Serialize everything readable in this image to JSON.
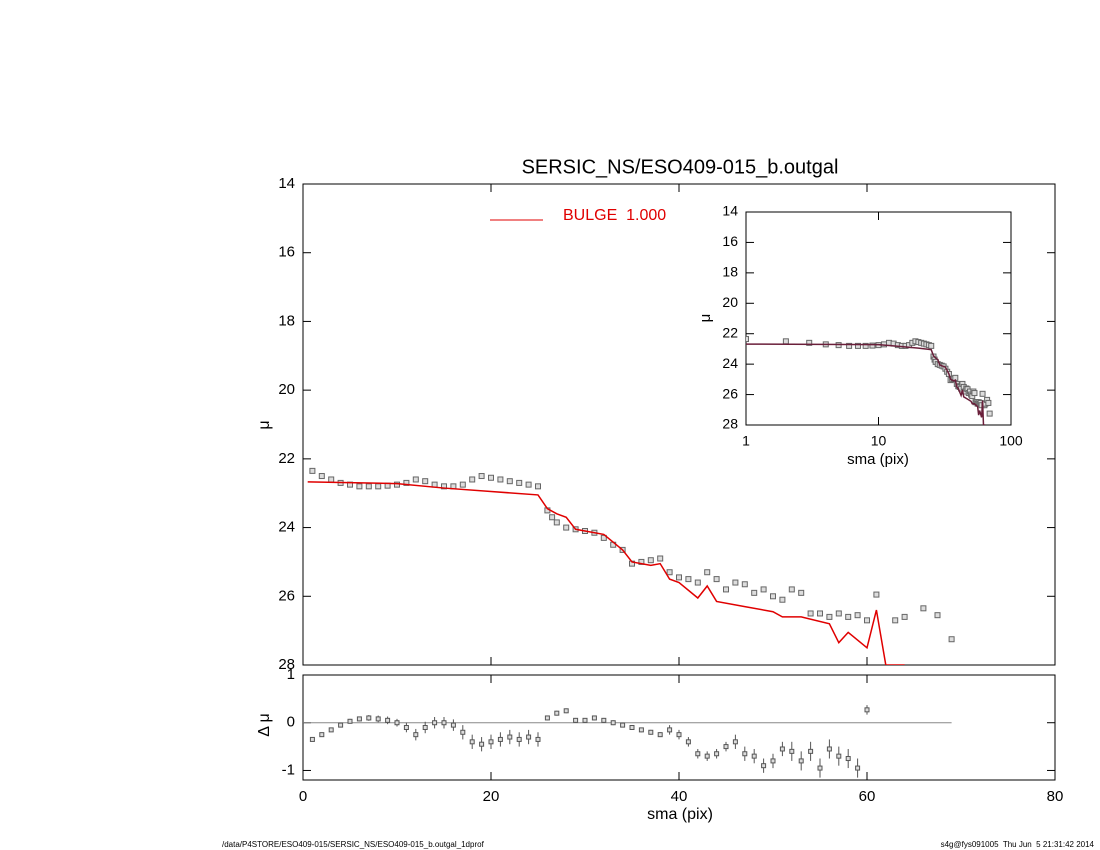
{
  "chart_data": [
    {
      "type": "line",
      "title": "SERSIC_NS/ESO409-015_b.outgal",
      "ylabel": "μ",
      "xlim": [
        0,
        80
      ],
      "xticks": [
        0,
        20,
        40,
        60,
        80
      ],
      "ylim": [
        28,
        14
      ],
      "yticks": [
        14,
        16,
        18,
        20,
        22,
        24,
        26,
        28
      ],
      "series": [
        {
          "color": "#666666",
          "marker": "square",
          "x": [
            1,
            2,
            3,
            4,
            5,
            6,
            7,
            8,
            9,
            10,
            11,
            12,
            13,
            14,
            15,
            16,
            17,
            18,
            19,
            20,
            21,
            22,
            23,
            24,
            25,
            26,
            26.5,
            27,
            28,
            29,
            30,
            31,
            32,
            33,
            34,
            35,
            36,
            37,
            38,
            39,
            40,
            41,
            42,
            43,
            44,
            45,
            46,
            47,
            48,
            49,
            50,
            51,
            52,
            53,
            54,
            55,
            56,
            57,
            58,
            59,
            60,
            61,
            63,
            64,
            66,
            67.5,
            69
          ],
          "values": [
            22.35,
            22.5,
            22.6,
            22.7,
            22.75,
            22.8,
            22.8,
            22.8,
            22.78,
            22.75,
            22.7,
            22.6,
            22.65,
            22.75,
            22.8,
            22.8,
            22.75,
            22.6,
            22.5,
            22.55,
            22.6,
            22.65,
            22.7,
            22.75,
            22.8,
            23.5,
            23.7,
            23.85,
            24.0,
            24.05,
            24.1,
            24.15,
            24.3,
            24.5,
            24.65,
            25.05,
            25.0,
            24.95,
            24.9,
            25.3,
            25.45,
            25.5,
            25.6,
            25.3,
            25.5,
            25.8,
            25.6,
            25.65,
            25.9,
            25.8,
            26.0,
            26.1,
            25.8,
            25.9,
            26.5,
            26.5,
            26.6,
            26.5,
            26.6,
            26.55,
            26.7,
            25.95,
            26.7,
            26.6,
            26.35,
            26.55,
            27.25
          ]
        },
        {
          "name": "BULGE  1.000",
          "color": "#e00000",
          "marker": "line",
          "x": [
            0.5,
            10,
            15,
            20,
            25,
            26,
            27,
            28,
            29,
            32,
            34,
            35,
            37,
            38,
            39,
            40,
            42,
            43,
            44,
            47,
            50,
            51,
            53,
            56,
            57,
            58,
            60,
            61,
            62,
            64
          ],
          "values": [
            22.67,
            22.72,
            22.85,
            22.95,
            23.05,
            23.45,
            23.6,
            23.7,
            24.05,
            24.2,
            24.65,
            25.0,
            25.1,
            25.05,
            25.5,
            25.6,
            26.05,
            25.7,
            26.15,
            26.3,
            26.45,
            26.6,
            26.6,
            26.8,
            27.35,
            27.05,
            27.5,
            26.4,
            28.0,
            28.0
          ]
        }
      ]
    },
    {
      "type": "errorbar",
      "xlabel": "sma (pix)",
      "ylabel": "Δ μ",
      "xlim": [
        0,
        80
      ],
      "xticks": [
        0,
        20,
        40,
        60,
        80
      ],
      "ylim": [
        -1.2,
        1.0
      ],
      "yticks": [
        1,
        0,
        -1
      ],
      "color": "#555555",
      "x": [
        1,
        2,
        3,
        4,
        5,
        6,
        7,
        8,
        9,
        10,
        11,
        12,
        13,
        14,
        15,
        16,
        17,
        18,
        19,
        20,
        21,
        22,
        23,
        24,
        25,
        26,
        27,
        28,
        29,
        30,
        31,
        32,
        33,
        34,
        35,
        36,
        37,
        38,
        39,
        40,
        41,
        42,
        43,
        44,
        45,
        46,
        47,
        48,
        49,
        50,
        51,
        52,
        53,
        54,
        55,
        56,
        57,
        58,
        59,
        60
      ],
      "values": [
        -0.35,
        -0.25,
        -0.15,
        -0.05,
        0.03,
        0.08,
        0.1,
        0.08,
        0.05,
        0.0,
        -0.1,
        -0.25,
        -0.1,
        0.0,
        0.0,
        -0.05,
        -0.2,
        -0.4,
        -0.45,
        -0.4,
        -0.35,
        -0.3,
        -0.35,
        -0.3,
        -0.35,
        0.1,
        0.2,
        0.25,
        0.05,
        0.05,
        0.1,
        0.05,
        0.0,
        -0.05,
        -0.1,
        -0.15,
        -0.2,
        -0.25,
        -0.15,
        -0.25,
        -0.4,
        -0.65,
        -0.7,
        -0.65,
        -0.5,
        -0.4,
        -0.65,
        -0.7,
        -0.9,
        -0.8,
        -0.55,
        -0.6,
        -0.8,
        -0.6,
        -0.95,
        -0.55,
        -0.7,
        -0.75,
        -0.95,
        0.27
      ],
      "errors": [
        0.03,
        0.03,
        0.04,
        0.04,
        0.05,
        0.05,
        0.06,
        0.07,
        0.08,
        0.08,
        0.1,
        0.12,
        0.12,
        0.12,
        0.12,
        0.12,
        0.15,
        0.15,
        0.15,
        0.15,
        0.15,
        0.15,
        0.15,
        0.15,
        0.15,
        0.05,
        0.05,
        0.05,
        0.05,
        0.05,
        0.05,
        0.05,
        0.05,
        0.05,
        0.05,
        0.05,
        0.05,
        0.05,
        0.1,
        0.1,
        0.1,
        0.1,
        0.1,
        0.1,
        0.1,
        0.15,
        0.15,
        0.15,
        0.15,
        0.15,
        0.15,
        0.2,
        0.2,
        0.2,
        0.2,
        0.2,
        0.2,
        0.2,
        0.2,
        0.1
      ]
    },
    {
      "type": "line",
      "log_x": true,
      "xlabel": "sma (pix)",
      "ylabel": "μ",
      "xlim": [
        1,
        100
      ],
      "xticks": [
        1,
        10,
        100
      ],
      "ylim": [
        28,
        14
      ],
      "yticks": [
        14,
        16,
        18,
        20,
        22,
        24,
        26,
        28
      ],
      "color": "#6a1f3a"
    }
  ],
  "footer": {
    "left": "/data/P4STORE/ESO409-015/SERSIC_NS/ESO409-015_b.outgal_1dprof",
    "right": "s4g@fys091005  Thu Jun  5 21:31:42 2014"
  }
}
